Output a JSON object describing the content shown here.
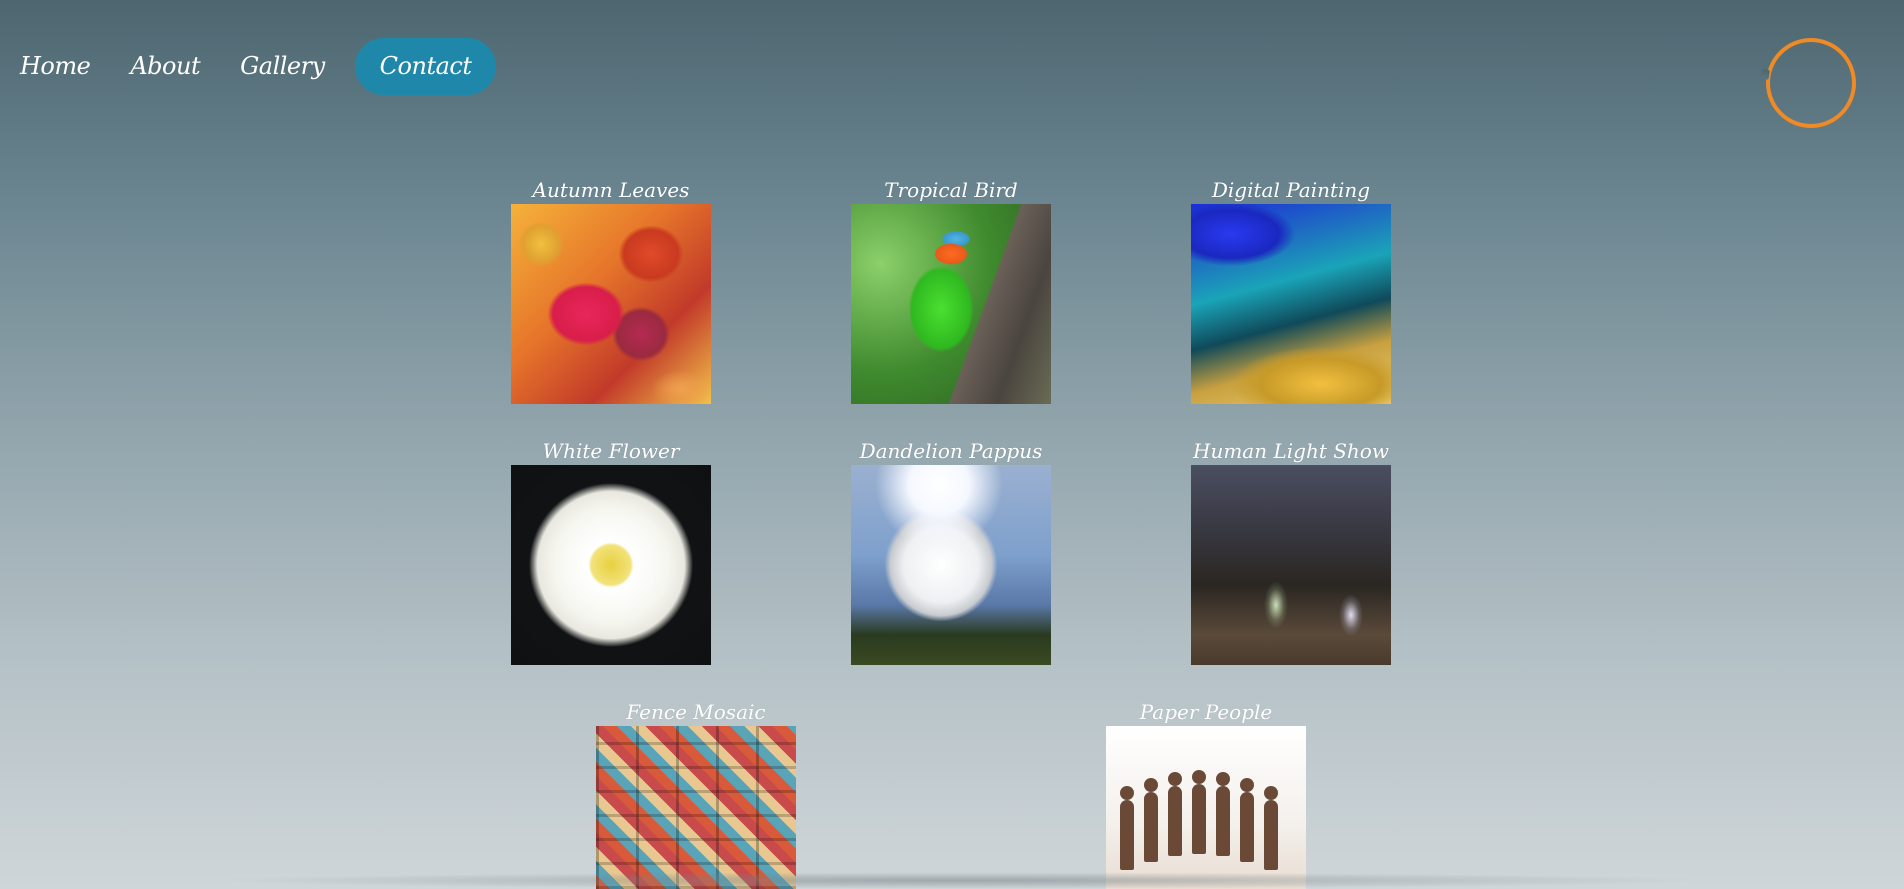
{
  "nav": {
    "items": [
      {
        "label": "Home"
      },
      {
        "label": "About"
      },
      {
        "label": "Gallery"
      },
      {
        "label": "Contact",
        "active": true
      }
    ]
  },
  "colors": {
    "accent": "#1f88aa",
    "logo_ring": "#f08a24",
    "background_top": "#4d6670",
    "background_bottom": "#cfd6d9"
  },
  "gallery": {
    "tiles": [
      {
        "caption": "Autumn Leaves",
        "image": "autumn-leaves-photo"
      },
      {
        "caption": "Tropical Bird",
        "image": "tropical-bird-photo"
      },
      {
        "caption": "Digital Painting",
        "image": "digital-painting-image"
      },
      {
        "caption": "White Flower",
        "image": "white-flower-photo"
      },
      {
        "caption": "Dandelion Pappus",
        "image": "dandelion-pappus-photo"
      },
      {
        "caption": "Human Light Show",
        "image": "human-light-show-photo"
      },
      {
        "caption": "Fence Mosaic",
        "image": "fence-mosaic-photo"
      },
      {
        "caption": "Paper People",
        "image": "paper-people-photo"
      }
    ]
  }
}
